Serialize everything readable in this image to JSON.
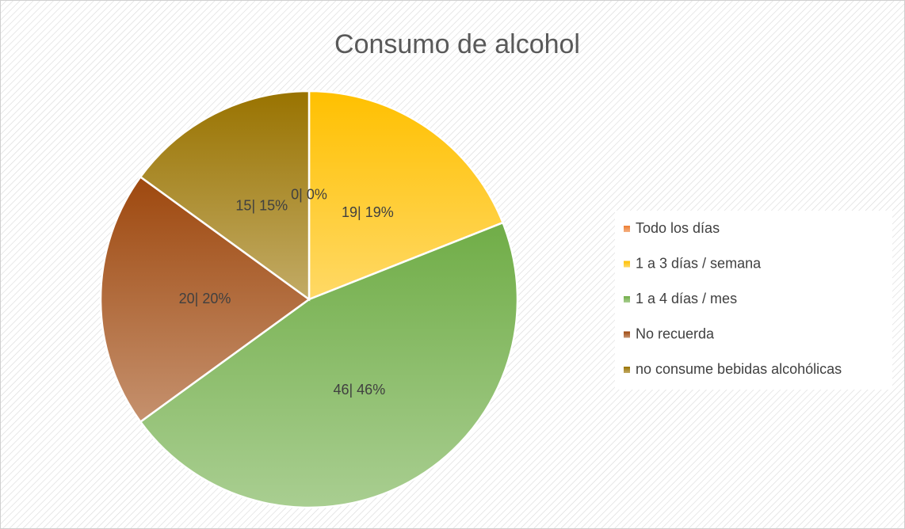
{
  "chart_data": {
    "type": "pie",
    "title": "Consumo de alcohol",
    "categories": [
      "Todo los días",
      "1 a 3 días / semana",
      "1 a 4 días / mes",
      "No recuerda",
      "no consume bebidas alcohólicas"
    ],
    "values": [
      0,
      19,
      46,
      20,
      15
    ],
    "value_labels": [
      "0| 0%",
      "19| 19%",
      "46| 46%",
      "20| 20%",
      "15| 15%"
    ],
    "colors": [
      "#ed7d31",
      "#ffc000",
      "#70ad47",
      "#9e480e",
      "#997300"
    ],
    "legend": "right"
  }
}
